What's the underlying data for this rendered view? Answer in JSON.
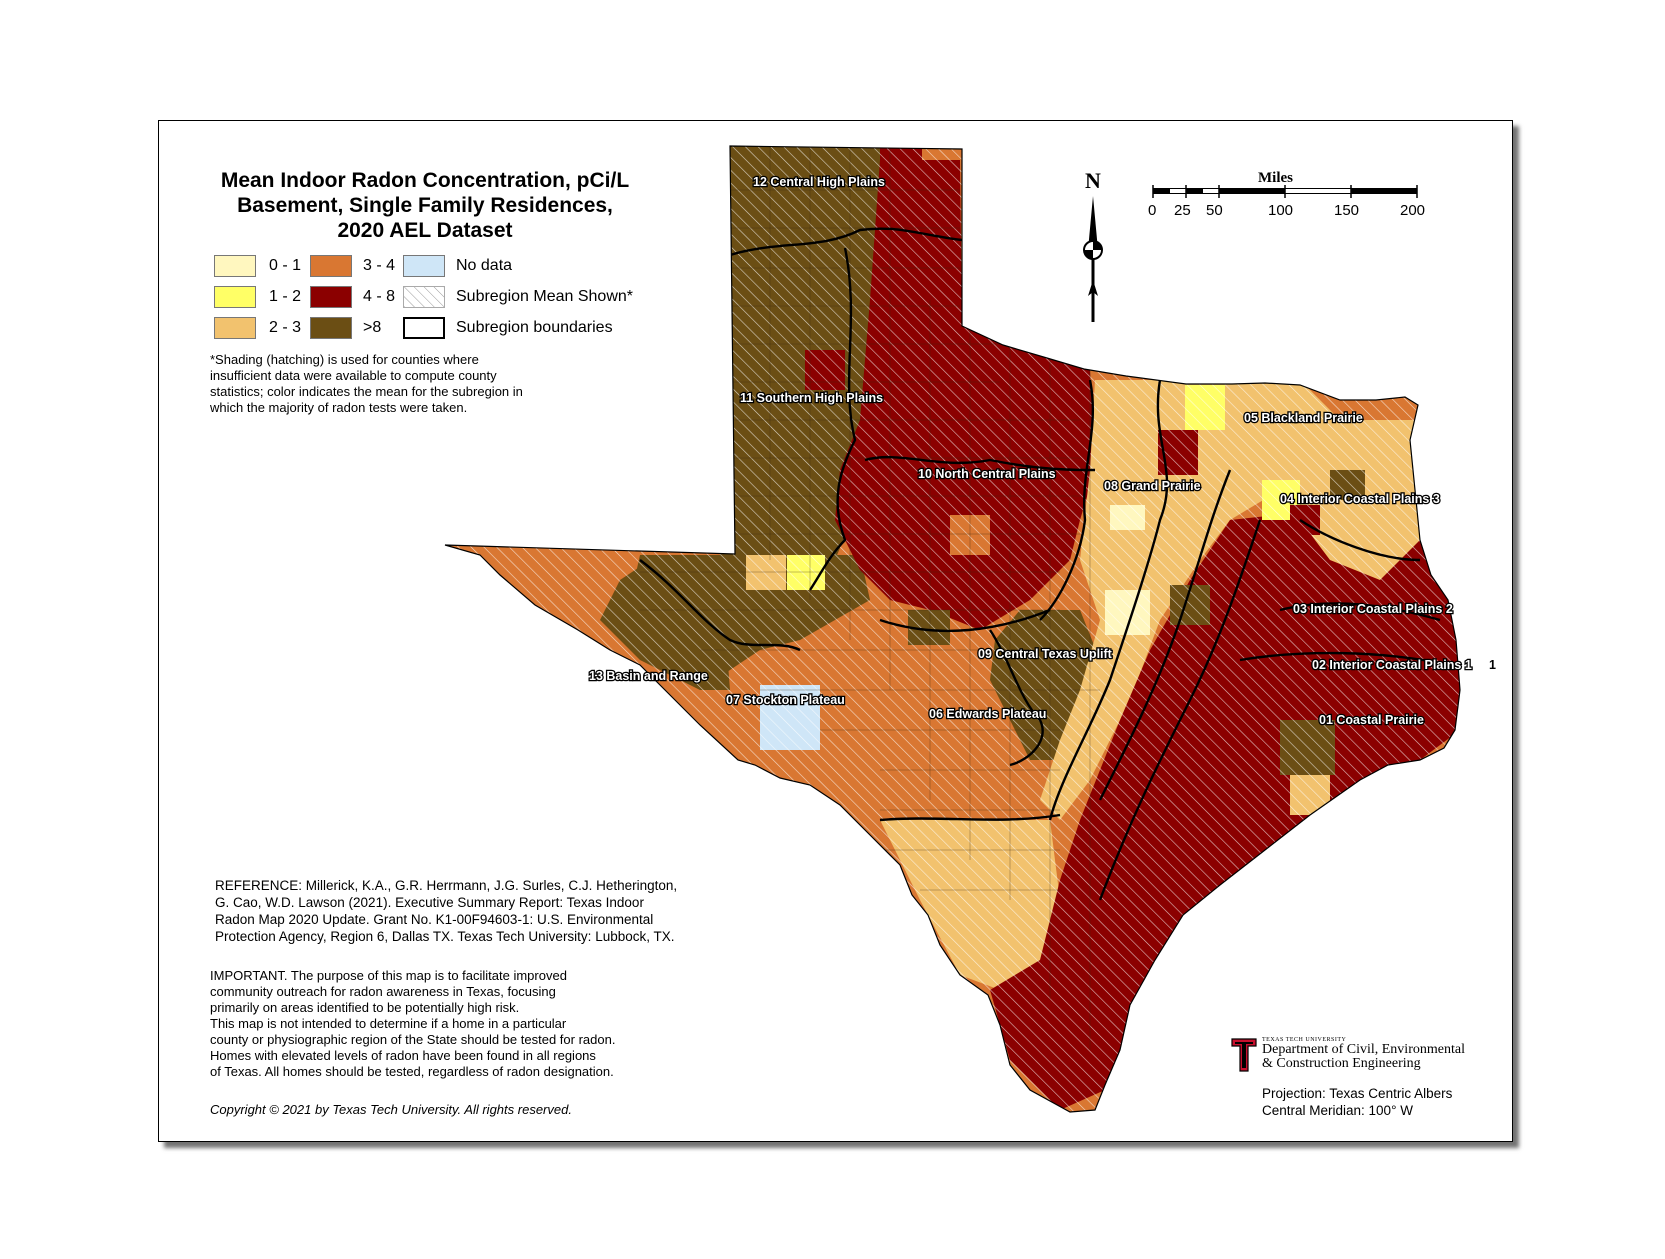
{
  "title": [
    "Mean Indoor Radon Concentration, pCi/L",
    "Basement, Single Family Residences,",
    "2020 AEL Dataset"
  ],
  "legend": {
    "items": [
      {
        "label": "0 - 1",
        "color": "#fff7bf"
      },
      {
        "label": "1 - 2",
        "color": "#ffff66"
      },
      {
        "label": "2 - 3",
        "color": "#f2c26e"
      },
      {
        "label": "3 - 4",
        "color": "#d97732"
      },
      {
        "label": "4 - 8",
        "color": "#8b0000"
      },
      {
        "label": ">8",
        "color": "#6b4e14"
      },
      {
        "label": "No data",
        "color": "#cfe6f7"
      },
      {
        "label": "Subregion Mean Shown*",
        "color": "#ffffff"
      },
      {
        "label": "Subregion boundaries",
        "color": "#ffffff"
      }
    ]
  },
  "note": "*Shading (hatching) is used for counties where insufficient data were available to compute county statistics; color indicates the mean for the subregion in which the majority of radon tests were taken.",
  "reference": [
    "REFERENCE: Millerick, K.A., G.R. Herrmann, J.G. Surles, C.J. Hetherington,",
    "G. Cao, W.D. Lawson (2021). Executive Summary Report: Texas Indoor",
    "Radon Map 2020 Update. Grant No. K1-00F94603-1: U.S. Environmental",
    "Protection Agency, Region 6, Dallas TX.  Texas Tech University: Lubbock, TX."
  ],
  "important": [
    "IMPORTANT. The purpose of this map is to facilitate improved",
    "community outreach for radon awareness in Texas, focusing",
    "primarily on areas identified to be potentially high risk.",
    "This map is not intended to determine if a home in a particular",
    "county or  physiographic region of the State should be tested for radon.",
    "Homes with elevated levels of radon have been found in all regions",
    "of Texas. All homes should be tested, regardless of radon designation."
  ],
  "copyright": "Copyright  ©  2021 by Texas Tech University. All rights reserved.",
  "projection": [
    "Projection: Texas Centric Albers",
    "Central Meridian: 100° W"
  ],
  "logo": {
    "small": "TEXAS TECH UNIVERSITY",
    "line1": "Department of Civil, Environmental",
    "line2": "& Construction Engineering"
  },
  "north_arrow": "N",
  "scale_bar": {
    "title": "Miles",
    "ticks": [
      "0",
      "25",
      "50",
      "100",
      "150",
      "200"
    ]
  },
  "regions": [
    {
      "id": "12",
      "label": "12 Central High Plains"
    },
    {
      "id": "11",
      "label": "11 Southern High Plains"
    },
    {
      "id": "10",
      "label": "10 North Central Plains"
    },
    {
      "id": "08",
      "label": "08 Grand Prairie"
    },
    {
      "id": "05",
      "label": "05 Blackland Prairie"
    },
    {
      "id": "04",
      "label": "04 Interior Coastal Plains 3"
    },
    {
      "id": "03",
      "label": "03 Interior Coastal Plains 2"
    },
    {
      "id": "02",
      "label": "02 Interior Coastal Plains 1"
    },
    {
      "id": "02b",
      "label": "1"
    },
    {
      "id": "01",
      "label": "01 Coastal Prairie"
    },
    {
      "id": "09",
      "label": "09 Central Texas Uplift"
    },
    {
      "id": "06",
      "label": "06 Edwards Plateau"
    },
    {
      "id": "07",
      "label": "07 Stockton Plateau"
    },
    {
      "id": "13",
      "label": "13 Basin and Range"
    }
  ]
}
